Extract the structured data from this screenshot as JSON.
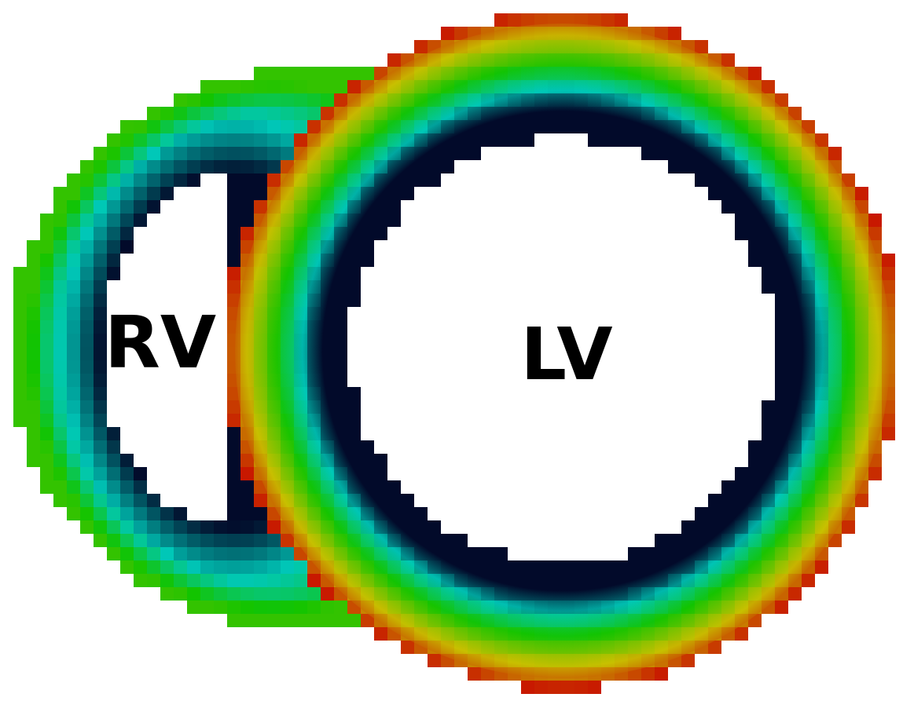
{
  "labels": {
    "rv": "RV",
    "lv": "LV"
  },
  "colormap": {
    "inner": "#020a2a",
    "mid": "#00c8b8",
    "green": "#12c400",
    "yellow": "#c8c000",
    "outer": "#c81800"
  },
  "background": "#ffffff"
}
